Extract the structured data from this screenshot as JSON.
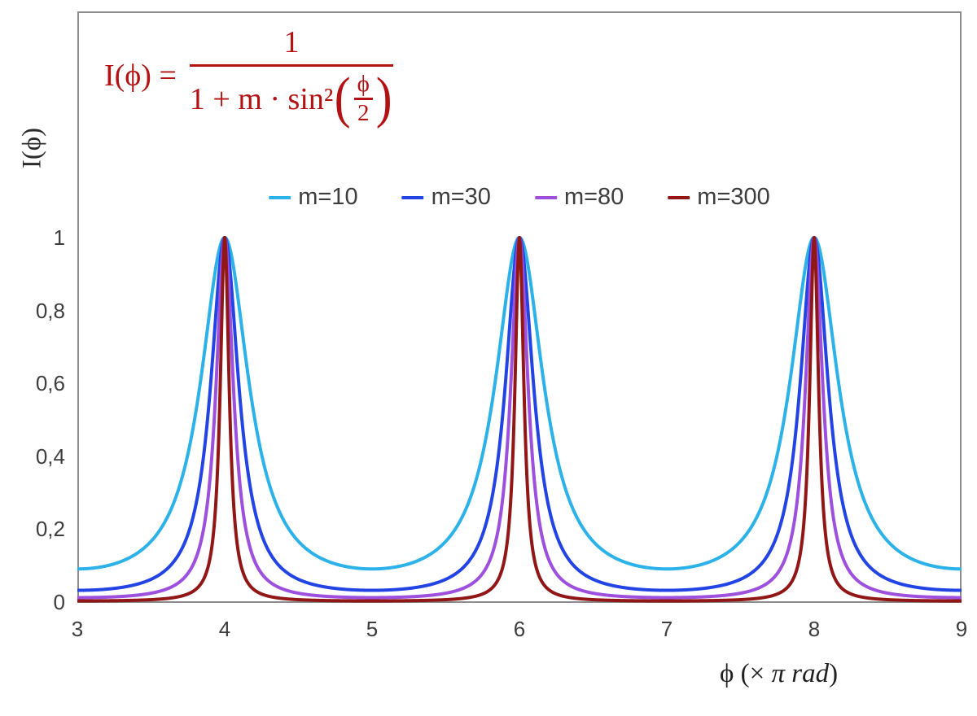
{
  "chart_data": {
    "type": "line",
    "title": "",
    "function": "I(x) = 1 / (1 + m * sin(x*pi/2)^2), x in units of pi rad",
    "xlabel": {
      "prefix": "ϕ  (× ",
      "italic": "π rad",
      "suffix": ")"
    },
    "ylabel": "I(ϕ)",
    "xlim": [
      3,
      9
    ],
    "ylim": [
      0,
      1
    ],
    "x_ticks": [
      "3",
      "4",
      "5",
      "6",
      "7",
      "8",
      "9"
    ],
    "y_ticks": [
      "0",
      "0,2",
      "0,4",
      "0,6",
      "0,8",
      "1"
    ],
    "grid": false,
    "legend_position": "top",
    "peaks_at_x": [
      4,
      6,
      8
    ],
    "peak_value": 1,
    "x_sample_step": 0.0025,
    "stroke_width": 4,
    "series": [
      {
        "name": "m=10",
        "m": 10,
        "color": "#2cb2e8"
      },
      {
        "name": "m=30",
        "m": 30,
        "color": "#2244e4"
      },
      {
        "name": "m=80",
        "m": 80,
        "color": "#9d4fdd"
      },
      {
        "name": "m=300",
        "m": 300,
        "color": "#911717"
      }
    ]
  },
  "formula": {
    "lhs": "I(ϕ) =",
    "numerator": "1",
    "denominator_prefix": "1 + m · sin²",
    "open_paren": "(",
    "inner_numerator": "ϕ",
    "inner_denominator": "2",
    "close_paren": ")",
    "color": "#b31212"
  },
  "axes": {
    "line_color": "#8c8c8c",
    "tick_label_color": "#3d3d3d"
  }
}
